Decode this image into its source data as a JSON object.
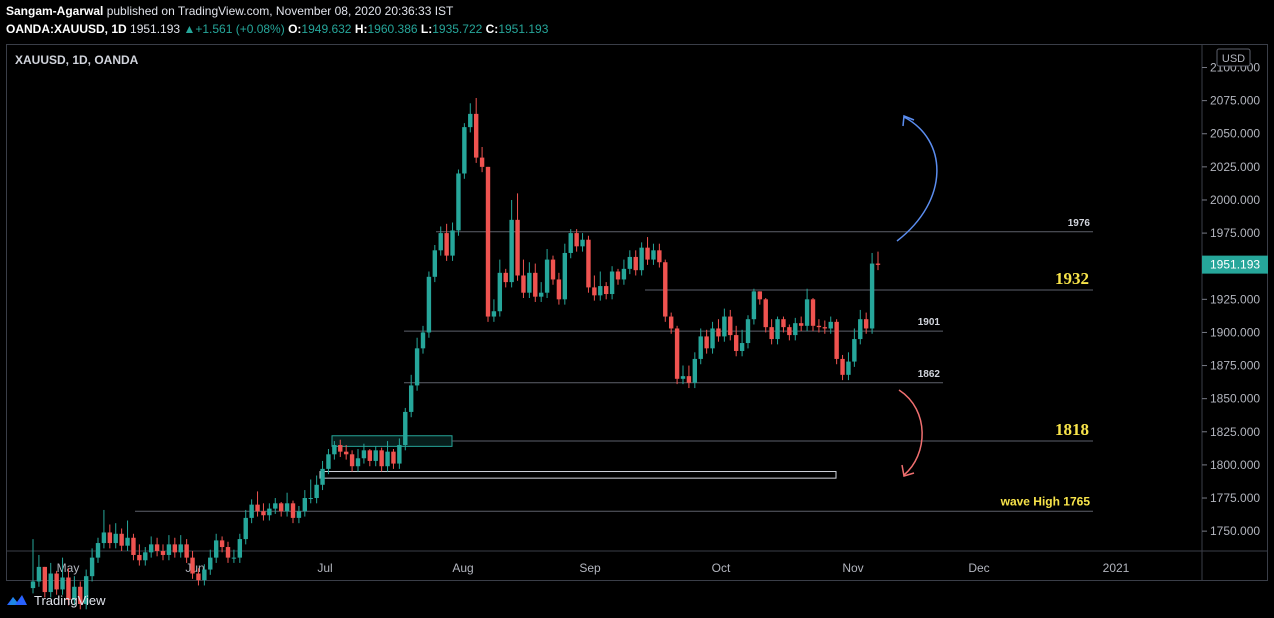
{
  "header": {
    "author": "Sangam-Agarwal",
    "published_text": "published on TradingView.com, November 08, 2020 20:36:33 IST",
    "symbol": "OANDA:XAUUSD, 1D",
    "last": "1951.193",
    "change": "+1.561 (+0.08%)",
    "o_label": "O:",
    "o": "1949.632",
    "h_label": "H:",
    "h": "1960.386",
    "l_label": "L:",
    "l": "1935.722",
    "c_label": "C:",
    "c": "1951.193"
  },
  "footer": {
    "brand": "TradingView"
  },
  "colors": {
    "up": "#26a69a",
    "down": "#ef5350",
    "level_text": "#f7e34a",
    "arrow_up": "#5b8def",
    "arrow_down": "#ef6f6f",
    "level_line": "#5d606b"
  },
  "chart_data": {
    "type": "candlestick",
    "title": "XAUUSD, 1D, OANDA",
    "currency_label": "USD",
    "ylim": [
      1735,
      2117
    ],
    "x_tick_labels": [
      "May",
      "Jun",
      "Jul",
      "Aug",
      "Sep",
      "Oct",
      "Nov",
      "Dec",
      "2021"
    ],
    "y_tick_labels": [
      "1750.000",
      "1775.000",
      "1800.000",
      "1825.000",
      "1850.000",
      "1875.000",
      "1900.000",
      "1925.000",
      "1950.000",
      "1975.000",
      "2000.000",
      "2025.000",
      "2050.000",
      "2075.000",
      "2100.000"
    ],
    "last_price_label": "1951.193",
    "levels": [
      {
        "value": 1976,
        "label": "1976",
        "style": "small"
      },
      {
        "value": 1932,
        "label": "1932",
        "style": "big"
      },
      {
        "value": 1901,
        "label": "1901",
        "style": "small"
      },
      {
        "value": 1862,
        "label": "1862",
        "style": "small"
      },
      {
        "value": 1818,
        "label": "1818",
        "style": "big"
      },
      {
        "value": 1765,
        "label": "wave High 1765",
        "style": "medium"
      }
    ],
    "annotations": [
      {
        "type": "arrow_up",
        "description": "projected upside"
      },
      {
        "type": "arrow_down",
        "description": "projected downside"
      }
    ],
    "series": [
      {
        "close": 1712,
        "high": 1744
      },
      {
        "close": 1723,
        "high": 1732
      },
      {
        "close": 1704,
        "high": 1721
      },
      {
        "close": 1718,
        "high": 1726
      },
      {
        "close": 1706,
        "high": 1720
      },
      {
        "close": 1715,
        "high": 1730
      },
      {
        "close": 1698,
        "high": 1722
      },
      {
        "close": 1708,
        "high": 1716
      },
      {
        "close": 1695,
        "high": 1712
      },
      {
        "close": 1716,
        "high": 1721
      },
      {
        "close": 1730,
        "high": 1737
      },
      {
        "close": 1741,
        "high": 1745
      },
      {
        "close": 1749,
        "high": 1766
      },
      {
        "close": 1741,
        "high": 1755
      },
      {
        "close": 1748,
        "high": 1756
      },
      {
        "close": 1739,
        "high": 1752
      },
      {
        "close": 1745,
        "high": 1758
      },
      {
        "close": 1732,
        "high": 1748
      },
      {
        "close": 1728,
        "high": 1740
      },
      {
        "close": 1734,
        "high": 1738
      },
      {
        "close": 1740,
        "high": 1746
      },
      {
        "close": 1735,
        "high": 1745
      },
      {
        "close": 1732,
        "high": 1740
      },
      {
        "close": 1740,
        "high": 1747
      },
      {
        "close": 1734,
        "high": 1745
      },
      {
        "close": 1740,
        "high": 1747
      },
      {
        "close": 1730,
        "high": 1744
      },
      {
        "close": 1718,
        "high": 1735
      },
      {
        "close": 1713,
        "high": 1722
      },
      {
        "close": 1721,
        "high": 1725
      },
      {
        "close": 1730,
        "high": 1736
      },
      {
        "close": 1743,
        "high": 1748
      },
      {
        "close": 1738,
        "high": 1746
      },
      {
        "close": 1730,
        "high": 1742
      },
      {
        "close": 1730,
        "high": 1736
      },
      {
        "close": 1744,
        "high": 1748
      },
      {
        "close": 1760,
        "high": 1766
      },
      {
        "close": 1770,
        "high": 1774
      },
      {
        "close": 1765,
        "high": 1780
      },
      {
        "close": 1762,
        "high": 1771
      },
      {
        "close": 1767,
        "high": 1771
      },
      {
        "close": 1771,
        "high": 1775
      },
      {
        "close": 1765,
        "high": 1772
      },
      {
        "close": 1771,
        "high": 1779
      },
      {
        "close": 1760,
        "high": 1773
      },
      {
        "close": 1765,
        "high": 1769
      },
      {
        "close": 1775,
        "high": 1781
      },
      {
        "close": 1775,
        "high": 1789
      },
      {
        "close": 1785,
        "high": 1792
      },
      {
        "close": 1797,
        "high": 1803
      },
      {
        "close": 1808,
        "high": 1812
      },
      {
        "close": 1815,
        "high": 1818
      },
      {
        "close": 1810,
        "high": 1819
      },
      {
        "close": 1808,
        "high": 1815
      },
      {
        "close": 1799,
        "high": 1811
      },
      {
        "close": 1805,
        "high": 1812
      },
      {
        "close": 1811,
        "high": 1816
      },
      {
        "close": 1803,
        "high": 1812
      },
      {
        "close": 1811,
        "high": 1814
      },
      {
        "close": 1799,
        "high": 1813
      },
      {
        "close": 1810,
        "high": 1818
      },
      {
        "close": 1801,
        "high": 1812
      },
      {
        "close": 1815,
        "high": 1820
      },
      {
        "close": 1840,
        "high": 1843
      },
      {
        "close": 1860,
        "high": 1868
      },
      {
        "close": 1888,
        "high": 1896
      },
      {
        "close": 1900,
        "high": 1905
      },
      {
        "close": 1942,
        "high": 1946
      },
      {
        "close": 1962,
        "high": 1966
      },
      {
        "close": 1975,
        "high": 1980
      },
      {
        "close": 1958,
        "high": 1982
      },
      {
        "close": 1977,
        "high": 1983
      },
      {
        "close": 2020,
        "high": 2023
      },
      {
        "close": 2055,
        "high": 2058
      },
      {
        "close": 2065,
        "high": 2073
      },
      {
        "close": 2032,
        "high": 2077
      },
      {
        "close": 2025,
        "high": 2040
      },
      {
        "close": 1912,
        "high": 2019
      },
      {
        "close": 1916,
        "high": 1925
      },
      {
        "close": 1945,
        "high": 1955
      },
      {
        "close": 1938,
        "high": 1948
      },
      {
        "close": 1985,
        "high": 2000
      },
      {
        "close": 1943,
        "high": 2005
      },
      {
        "close": 1930,
        "high": 1955
      },
      {
        "close": 1945,
        "high": 1953
      },
      {
        "close": 1927,
        "high": 1952
      },
      {
        "close": 1930,
        "high": 1938
      },
      {
        "close": 1955,
        "high": 1963
      },
      {
        "close": 1940,
        "high": 1958
      },
      {
        "close": 1925,
        "high": 1945
      },
      {
        "close": 1960,
        "high": 1967
      },
      {
        "close": 1975,
        "high": 1978
      },
      {
        "close": 1965,
        "high": 1978
      },
      {
        "close": 1970,
        "high": 1975
      },
      {
        "close": 1934,
        "high": 1973
      },
      {
        "close": 1928,
        "high": 1943
      },
      {
        "close": 1935,
        "high": 1946
      },
      {
        "close": 1929,
        "high": 1938
      },
      {
        "close": 1946,
        "high": 1950
      },
      {
        "close": 1940,
        "high": 1948
      },
      {
        "close": 1948,
        "high": 1955
      },
      {
        "close": 1957,
        "high": 1962
      },
      {
        "close": 1947,
        "high": 1962
      },
      {
        "close": 1964,
        "high": 1968
      },
      {
        "close": 1955,
        "high": 1972
      },
      {
        "close": 1962,
        "high": 1967
      },
      {
        "close": 1953,
        "high": 1967
      },
      {
        "close": 1912,
        "high": 1955
      },
      {
        "close": 1903,
        "high": 1915
      },
      {
        "close": 1865,
        "high": 1905
      },
      {
        "close": 1867,
        "high": 1875
      },
      {
        "close": 1862,
        "high": 1875
      },
      {
        "close": 1880,
        "high": 1885
      },
      {
        "close": 1897,
        "high": 1903
      },
      {
        "close": 1888,
        "high": 1902
      },
      {
        "close": 1903,
        "high": 1908
      },
      {
        "close": 1897,
        "high": 1910
      },
      {
        "close": 1912,
        "high": 1918
      },
      {
        "close": 1898,
        "high": 1917
      },
      {
        "close": 1886,
        "high": 1905
      },
      {
        "close": 1892,
        "high": 1902
      },
      {
        "close": 1910,
        "high": 1913
      },
      {
        "close": 1931,
        "high": 1933
      },
      {
        "close": 1925,
        "high": 1930
      },
      {
        "close": 1904,
        "high": 1926
      },
      {
        "close": 1895,
        "high": 1910
      },
      {
        "close": 1910,
        "high": 1912
      },
      {
        "close": 1904,
        "high": 1912
      },
      {
        "close": 1898,
        "high": 1906
      },
      {
        "close": 1907,
        "high": 1911
      },
      {
        "close": 1905,
        "high": 1912
      },
      {
        "close": 1925,
        "high": 1933
      },
      {
        "close": 1905,
        "high": 1926
      },
      {
        "close": 1904,
        "high": 1910
      },
      {
        "close": 1903,
        "high": 1909
      },
      {
        "close": 1908,
        "high": 1912
      },
      {
        "close": 1880,
        "high": 1910
      },
      {
        "close": 1868,
        "high": 1883
      },
      {
        "close": 1878,
        "high": 1885
      },
      {
        "close": 1895,
        "high": 1903
      },
      {
        "close": 1910,
        "high": 1917
      },
      {
        "close": 1903,
        "high": 1915
      },
      {
        "close": 1952,
        "high": 1960
      },
      {
        "close": 1951,
        "high": 1961
      }
    ]
  }
}
